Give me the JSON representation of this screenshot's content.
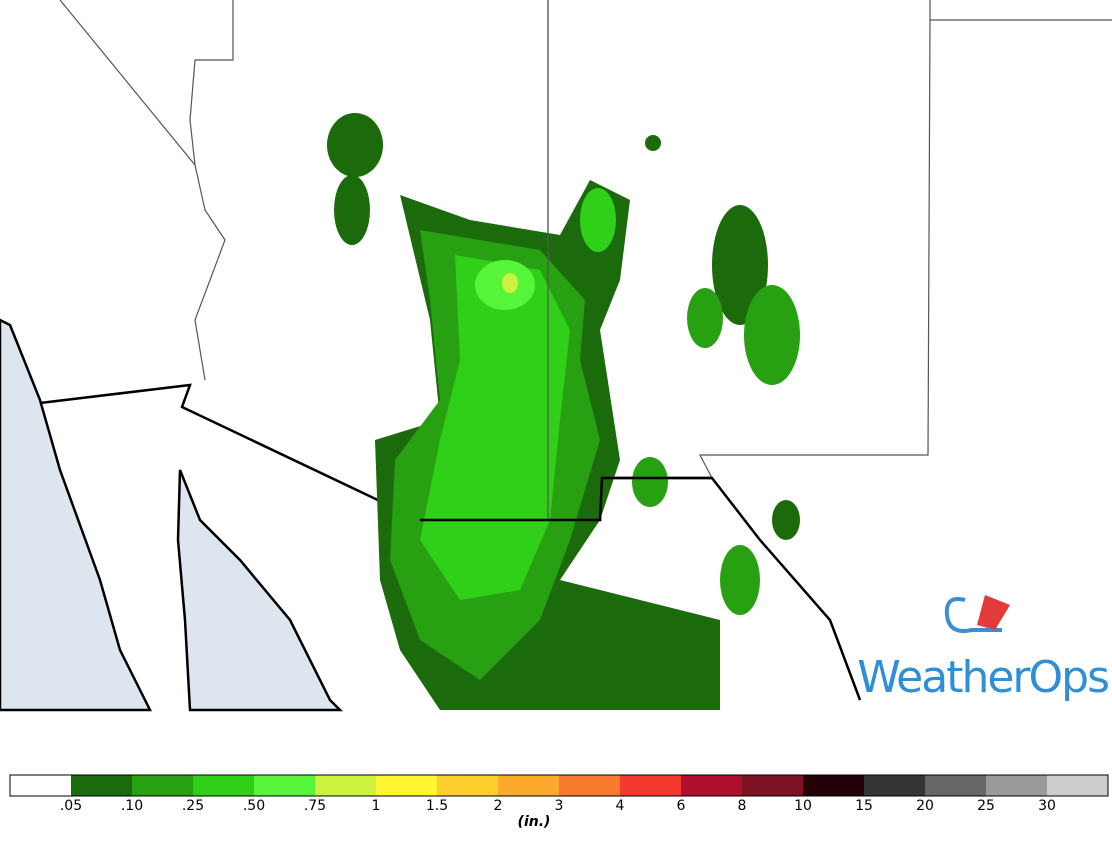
{
  "legend": {
    "labels": [
      ".05",
      ".10",
      ".25",
      ".50",
      ".75",
      "1",
      "1.5",
      "2",
      "3",
      "4",
      "6",
      "8",
      "10",
      "15",
      "20",
      "25",
      "30"
    ],
    "colors": [
      "#ffffff",
      "#1b6a0b",
      "#27a012",
      "#31d018",
      "#57f53a",
      "#cdf23e",
      "#fff530",
      "#fbd02e",
      "#fbaa2c",
      "#f97a2c",
      "#f43a2e",
      "#ad0f2c",
      "#7d1222",
      "#260008",
      "#343434",
      "#676767",
      "#9a9a9a",
      "#cdcdcd"
    ],
    "unit": "(in.)"
  },
  "logo": {
    "text": "WeatherOps"
  }
}
